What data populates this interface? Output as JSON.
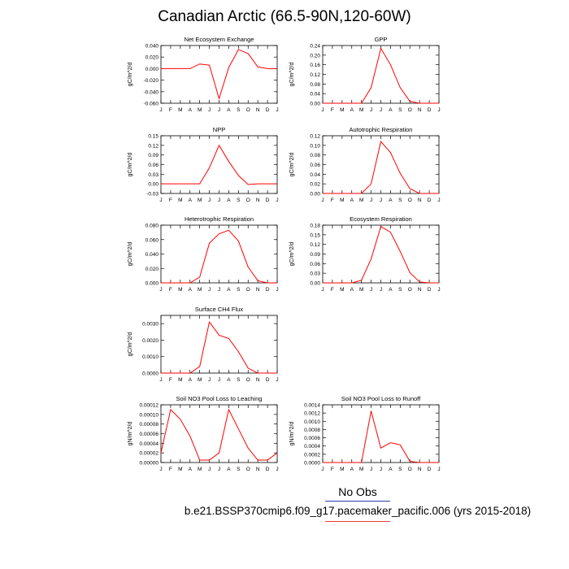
{
  "title": "Canadian Arctic (66.5-90N,120-60W)",
  "legend": {
    "no_obs": "No Obs",
    "case": "b.e21.BSSP370cmip6.f09_g17.pacemaker_pacific.006 (yrs 2015-2018)",
    "line_color": "#ff0000",
    "obs_line_color": "#2b3fa8",
    "case_underline_color": "#e8403a"
  },
  "chart_data": [
    {
      "type": "line",
      "title": "Net Ecosystem Exchange",
      "ylabel": "gC/m^2/d",
      "x": [
        "J",
        "F",
        "M",
        "A",
        "M",
        "J",
        "J",
        "A",
        "S",
        "O",
        "N",
        "D",
        "J"
      ],
      "ylim": [
        -0.06,
        0.04
      ],
      "yticks": [
        -0.06,
        -0.04,
        -0.02,
        0.0,
        0.02,
        0.04
      ],
      "ytick_labels": [
        "-0.060",
        "-0.040",
        "-0.020",
        "0.000",
        "0.020",
        "0.040"
      ],
      "series": [
        {
          "values": [
            0.0,
            0.0,
            0.0,
            0.0,
            0.008,
            0.006,
            -0.052,
            0.002,
            0.033,
            0.026,
            0.003,
            0.0,
            0.0
          ]
        }
      ]
    },
    {
      "type": "line",
      "title": "GPP",
      "ylabel": "gC/m^2/d",
      "x": [
        "J",
        "F",
        "M",
        "A",
        "M",
        "J",
        "J",
        "A",
        "S",
        "O",
        "N",
        "D",
        "J"
      ],
      "ylim": [
        0.0,
        0.24
      ],
      "yticks": [
        0.0,
        0.04,
        0.08,
        0.12,
        0.16,
        0.2,
        0.24
      ],
      "ytick_labels": [
        "0.00",
        "0.04",
        "0.08",
        "0.12",
        "0.16",
        "0.20",
        "0.24"
      ],
      "series": [
        {
          "values": [
            0.0,
            0.0,
            0.0,
            0.0,
            0.0,
            0.065,
            0.228,
            0.16,
            0.065,
            0.008,
            0.0,
            0.0,
            0.0
          ]
        }
      ]
    },
    {
      "type": "line",
      "title": "NPP",
      "ylabel": "gC/m^2/d",
      "x": [
        "J",
        "F",
        "M",
        "A",
        "M",
        "J",
        "J",
        "A",
        "S",
        "O",
        "N",
        "D",
        "J"
      ],
      "ylim": [
        -0.03,
        0.15
      ],
      "yticks": [
        -0.03,
        0.0,
        0.03,
        0.06,
        0.09,
        0.12,
        0.15
      ],
      "ytick_labels": [
        "-0.03",
        "0.00",
        "0.03",
        "0.06",
        "0.09",
        "0.12",
        "0.15"
      ],
      "series": [
        {
          "values": [
            0.0,
            0.0,
            0.0,
            0.0,
            0.0,
            0.05,
            0.12,
            0.07,
            0.026,
            -0.002,
            0.0,
            0.0,
            0.0
          ]
        }
      ]
    },
    {
      "type": "line",
      "title": "Autotrophic Respiration",
      "ylabel": "gC/m^2/d",
      "x": [
        "J",
        "F",
        "M",
        "A",
        "M",
        "J",
        "J",
        "A",
        "S",
        "O",
        "N",
        "D",
        "J"
      ],
      "ylim": [
        0.0,
        0.12
      ],
      "yticks": [
        0.0,
        0.02,
        0.04,
        0.06,
        0.08,
        0.1,
        0.12
      ],
      "ytick_labels": [
        "0.00",
        "0.02",
        "0.04",
        "0.06",
        "0.08",
        "0.10",
        "0.12"
      ],
      "series": [
        {
          "values": [
            0.0,
            0.0,
            0.0,
            0.0,
            0.0,
            0.02,
            0.108,
            0.085,
            0.042,
            0.01,
            0.0,
            0.0,
            0.0
          ]
        }
      ]
    },
    {
      "type": "line",
      "title": "Heterotrophic Respiration",
      "ylabel": "gC/m^2/d",
      "x": [
        "J",
        "F",
        "M",
        "A",
        "M",
        "J",
        "J",
        "A",
        "S",
        "O",
        "N",
        "D",
        "J"
      ],
      "ylim": [
        0.0,
        0.08
      ],
      "yticks": [
        0.0,
        0.02,
        0.04,
        0.06,
        0.08
      ],
      "ytick_labels": [
        "0.000",
        "0.020",
        "0.040",
        "0.060",
        "0.080"
      ],
      "series": [
        {
          "values": [
            0.0,
            0.0,
            0.0,
            0.0,
            0.008,
            0.055,
            0.068,
            0.073,
            0.058,
            0.022,
            0.003,
            0.0,
            0.0
          ]
        }
      ]
    },
    {
      "type": "line",
      "title": "Ecosystem Respiration",
      "ylabel": "gC/m^2/d",
      "x": [
        "J",
        "F",
        "M",
        "A",
        "M",
        "J",
        "J",
        "A",
        "S",
        "O",
        "N",
        "D",
        "J"
      ],
      "ylim": [
        0.0,
        0.18
      ],
      "yticks": [
        0.0,
        0.03,
        0.06,
        0.09,
        0.12,
        0.15,
        0.18
      ],
      "ytick_labels": [
        "0.00",
        "0.03",
        "0.06",
        "0.09",
        "0.12",
        "0.15",
        "0.18"
      ],
      "series": [
        {
          "values": [
            0.0,
            0.0,
            0.0,
            0.0,
            0.008,
            0.075,
            0.176,
            0.158,
            0.098,
            0.032,
            0.003,
            0.0,
            0.0
          ]
        }
      ]
    },
    {
      "type": "line",
      "title": "Surface CH4 Flux",
      "ylabel": "gC/m^2/d",
      "x": [
        "J",
        "F",
        "M",
        "A",
        "M",
        "J",
        "J",
        "A",
        "S",
        "O",
        "N",
        "D",
        "J"
      ],
      "ylim": [
        0.0,
        0.0035
      ],
      "yticks": [
        0.0,
        0.001,
        0.002,
        0.003
      ],
      "ytick_labels": [
        "0.0000",
        "0.0010",
        "0.0020",
        "0.0030"
      ],
      "series": [
        {
          "values": [
            0.0,
            0.0,
            0.0,
            0.0,
            0.0004,
            0.0031,
            0.0023,
            0.0021,
            0.0013,
            0.0003,
            0.0,
            0.0,
            0.0
          ]
        }
      ]
    },
    {
      "type": "line",
      "title": "Soil NO3 Pool Loss to Leaching",
      "ylabel": "gN/m^2/d",
      "x": [
        "J",
        "F",
        "M",
        "A",
        "M",
        "J",
        "J",
        "A",
        "S",
        "O",
        "N",
        "D",
        "J"
      ],
      "ylim": [
        0.0,
        0.00012
      ],
      "yticks": [
        0.0,
        2e-05,
        4e-05,
        6e-05,
        8e-05,
        0.0001,
        0.00012
      ],
      "ytick_labels": [
        "0.00000",
        "0.00002",
        "0.00004",
        "0.00006",
        "0.00008",
        "0.00010",
        "0.00012"
      ],
      "series": [
        {
          "values": [
            2e-05,
            0.00011,
            9e-05,
            5.5e-05,
            5e-06,
            5e-06,
            2e-05,
            0.00011,
            7e-05,
            3e-05,
            5e-06,
            5e-06,
            2e-05
          ]
        }
      ]
    },
    {
      "type": "line",
      "title": "Soil NO3 Pool Loss to Runoff",
      "ylabel": "gN/m^2/d",
      "x": [
        "J",
        "F",
        "M",
        "A",
        "M",
        "J",
        "J",
        "A",
        "S",
        "O",
        "N",
        "D",
        "J"
      ],
      "ylim": [
        0.0,
        0.0014
      ],
      "yticks": [
        0.0,
        0.0002,
        0.0004,
        0.0006,
        0.0008,
        0.001,
        0.0012,
        0.0014
      ],
      "ytick_labels": [
        "0.0000",
        "0.0002",
        "0.0004",
        "0.0006",
        "0.0008",
        "0.0010",
        "0.0012",
        "0.0014"
      ],
      "series": [
        {
          "values": [
            0.0,
            0.0,
            0.0,
            0.0,
            0.0,
            0.00125,
            0.00035,
            0.00048,
            0.00043,
            3e-05,
            0.0,
            0.0,
            0.0
          ]
        }
      ]
    }
  ]
}
